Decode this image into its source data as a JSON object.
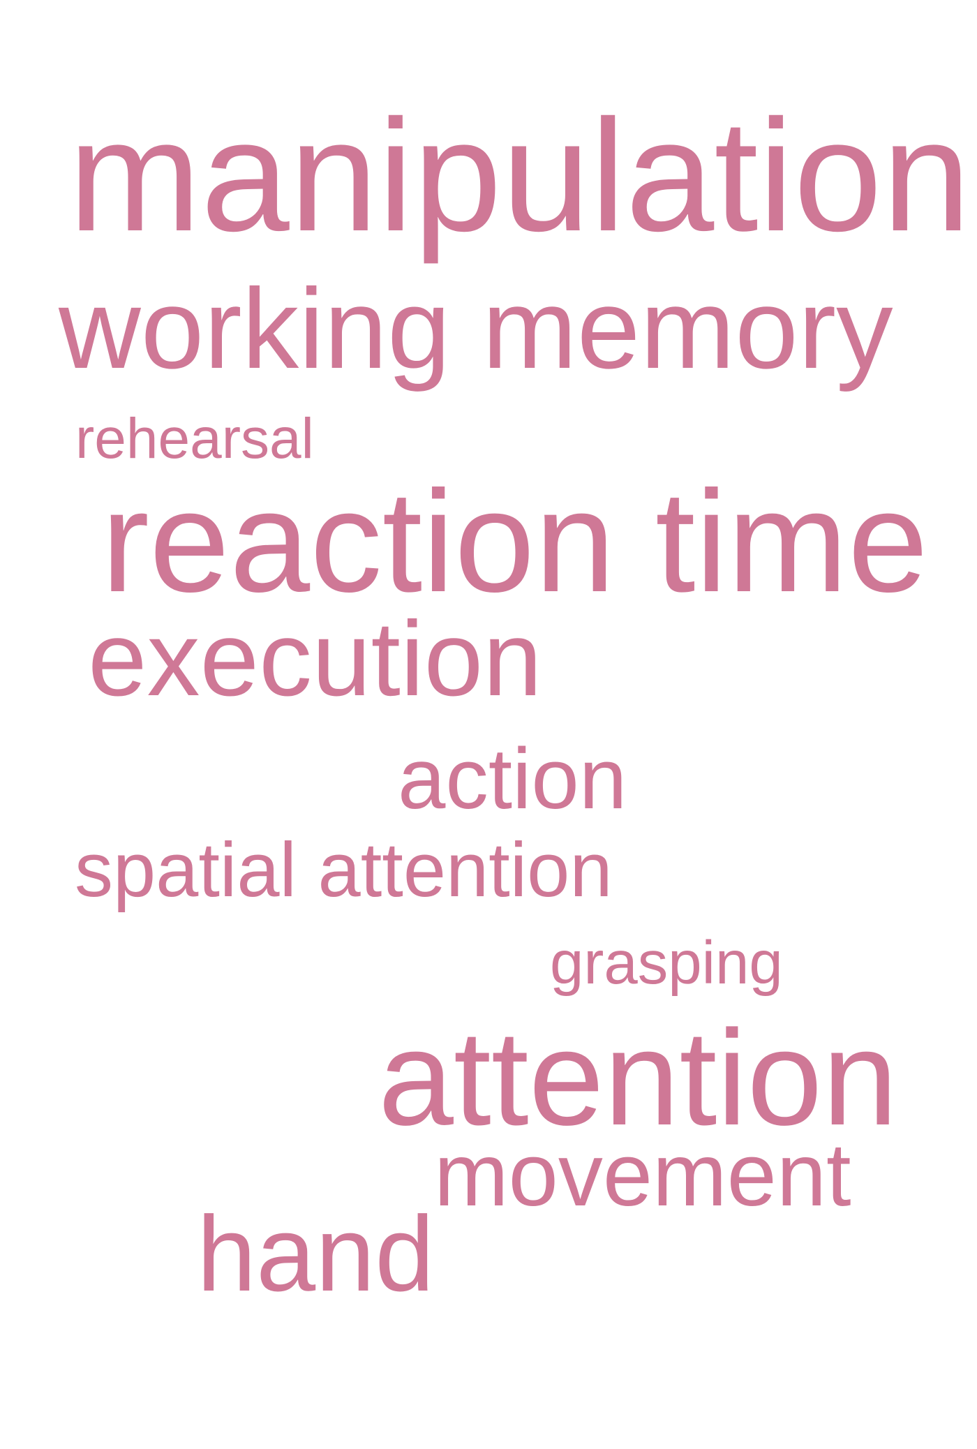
{
  "word_cloud": {
    "color": "#cf7896",
    "background": "#ffffff",
    "words": [
      {
        "text": "manipulation"
      },
      {
        "text": "working memory"
      },
      {
        "text": "rehearsal"
      },
      {
        "text": "reaction time"
      },
      {
        "text": "execution"
      },
      {
        "text": "action"
      },
      {
        "text": "spatial attention"
      },
      {
        "text": "grasping"
      },
      {
        "text": "attention"
      },
      {
        "text": "movement"
      },
      {
        "text": "hand"
      }
    ]
  }
}
